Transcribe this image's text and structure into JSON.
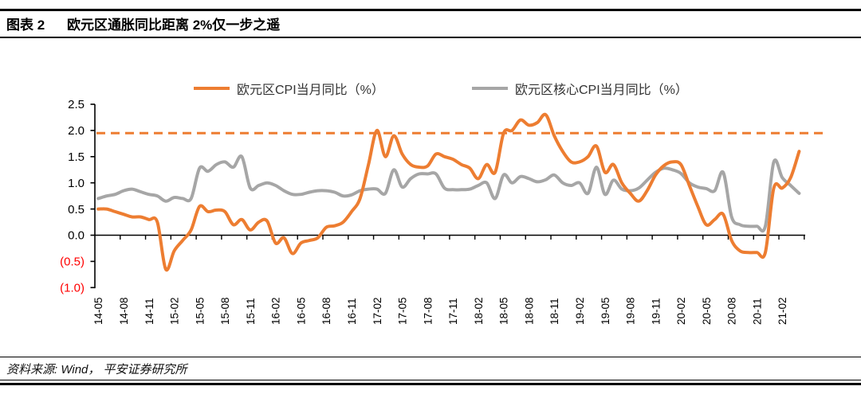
{
  "header": {
    "figure_label": "图表 2",
    "title": "欧元区通胀同比距离 2%仅一步之遥"
  },
  "footer": {
    "source": "资料来源: Wind， 平安证券研究所"
  },
  "chart_data": {
    "type": "line",
    "title": "",
    "xlabel": "",
    "ylabel": "",
    "ylim": [
      -1.0,
      2.5
    ],
    "grid": false,
    "legend_position": "top",
    "y_ticks": [
      {
        "label": "2.5",
        "value": 2.5,
        "color": "#000000"
      },
      {
        "label": "2.0",
        "value": 2.0,
        "color": "#000000"
      },
      {
        "label": "1.5",
        "value": 1.5,
        "color": "#000000"
      },
      {
        "label": "1.0",
        "value": 1.0,
        "color": "#000000"
      },
      {
        "label": "0.5",
        "value": 0.5,
        "color": "#000000"
      },
      {
        "label": "0.0",
        "value": 0.0,
        "color": "#000000"
      },
      {
        "label": "(0.5)",
        "value": -0.5,
        "color": "#FF0000"
      },
      {
        "label": "(1.0)",
        "value": -1.0,
        "color": "#FF0000"
      }
    ],
    "x_tick_labels": [
      "14-05",
      "14-08",
      "14-11",
      "15-02",
      "15-05",
      "15-08",
      "15-11",
      "16-02",
      "16-05",
      "16-08",
      "16-11",
      "17-02",
      "17-05",
      "17-08",
      "17-11",
      "18-02",
      "18-05",
      "18-08",
      "18-11",
      "19-02",
      "19-05",
      "19-08",
      "19-11",
      "20-02",
      "20-05",
      "20-08",
      "20-11",
      "21-02"
    ],
    "categories": [
      "14-05",
      "14-06",
      "14-07",
      "14-08",
      "14-09",
      "14-10",
      "14-11",
      "14-12",
      "15-01",
      "15-02",
      "15-03",
      "15-04",
      "15-05",
      "15-06",
      "15-07",
      "15-08",
      "15-09",
      "15-10",
      "15-11",
      "15-12",
      "16-01",
      "16-02",
      "16-03",
      "16-04",
      "16-05",
      "16-06",
      "16-07",
      "16-08",
      "16-09",
      "16-10",
      "16-11",
      "16-12",
      "17-01",
      "17-02",
      "17-03",
      "17-04",
      "17-05",
      "17-06",
      "17-07",
      "17-08",
      "17-09",
      "17-10",
      "17-11",
      "17-12",
      "18-01",
      "18-02",
      "18-03",
      "18-04",
      "18-05",
      "18-06",
      "18-07",
      "18-08",
      "18-09",
      "18-10",
      "18-11",
      "18-12",
      "19-01",
      "19-02",
      "19-03",
      "19-04",
      "19-05",
      "19-06",
      "19-07",
      "19-08",
      "19-09",
      "19-10",
      "19-11",
      "19-12",
      "20-01",
      "20-02",
      "20-03",
      "20-04",
      "20-05",
      "20-06",
      "20-07",
      "20-08",
      "20-09",
      "20-10",
      "20-11",
      "20-12",
      "21-01",
      "21-02",
      "21-03",
      "21-04"
    ],
    "reference_line": {
      "value": 1.95,
      "color": "#ED7D31",
      "style": "dashed"
    },
    "series": [
      {
        "name": "欧元区CPI当月同比（%）",
        "color": "#ED7D31",
        "values": [
          0.5,
          0.5,
          0.45,
          0.4,
          0.35,
          0.35,
          0.3,
          0.25,
          -0.65,
          -0.3,
          -0.1,
          0.1,
          0.55,
          0.45,
          0.48,
          0.45,
          0.2,
          0.3,
          0.1,
          0.25,
          0.27,
          -0.15,
          -0.05,
          -0.35,
          -0.15,
          -0.1,
          -0.05,
          0.15,
          0.18,
          0.25,
          0.45,
          0.7,
          1.35,
          2.0,
          1.5,
          1.9,
          1.55,
          1.35,
          1.3,
          1.32,
          1.55,
          1.5,
          1.45,
          1.35,
          1.28,
          1.08,
          1.35,
          1.2,
          1.95,
          2.0,
          2.2,
          2.1,
          2.15,
          2.3,
          1.9,
          1.6,
          1.4,
          1.4,
          1.5,
          1.7,
          1.2,
          1.35,
          1.0,
          0.8,
          0.65,
          0.85,
          1.15,
          1.33,
          1.4,
          1.35,
          0.95,
          0.55,
          0.2,
          0.3,
          0.4,
          -0.1,
          -0.3,
          -0.33,
          -0.33,
          -0.33,
          0.9,
          0.9,
          1.1,
          1.6
        ]
      },
      {
        "name": "欧元区核心CPI当月同比（%）",
        "color": "#A6A6A6",
        "values": [
          0.7,
          0.75,
          0.78,
          0.85,
          0.88,
          0.83,
          0.78,
          0.75,
          0.65,
          0.72,
          0.7,
          0.7,
          1.28,
          1.22,
          1.35,
          1.4,
          1.3,
          1.5,
          0.9,
          0.95,
          1.0,
          0.95,
          0.85,
          0.78,
          0.78,
          0.82,
          0.85,
          0.85,
          0.82,
          0.75,
          0.77,
          0.85,
          0.88,
          0.88,
          0.8,
          1.25,
          0.92,
          1.08,
          1.17,
          1.17,
          1.17,
          0.9,
          0.87,
          0.87,
          0.88,
          0.95,
          1.0,
          0.7,
          1.15,
          1.0,
          1.12,
          1.08,
          1.02,
          1.06,
          1.15,
          1.0,
          0.95,
          1.0,
          0.8,
          1.3,
          0.78,
          1.05,
          0.88,
          0.85,
          0.9,
          1.05,
          1.2,
          1.28,
          1.25,
          1.18,
          1.0,
          0.92,
          0.89,
          0.85,
          1.2,
          0.35,
          0.2,
          0.17,
          0.17,
          0.17,
          1.4,
          1.1,
          0.95,
          0.8
        ]
      }
    ]
  }
}
